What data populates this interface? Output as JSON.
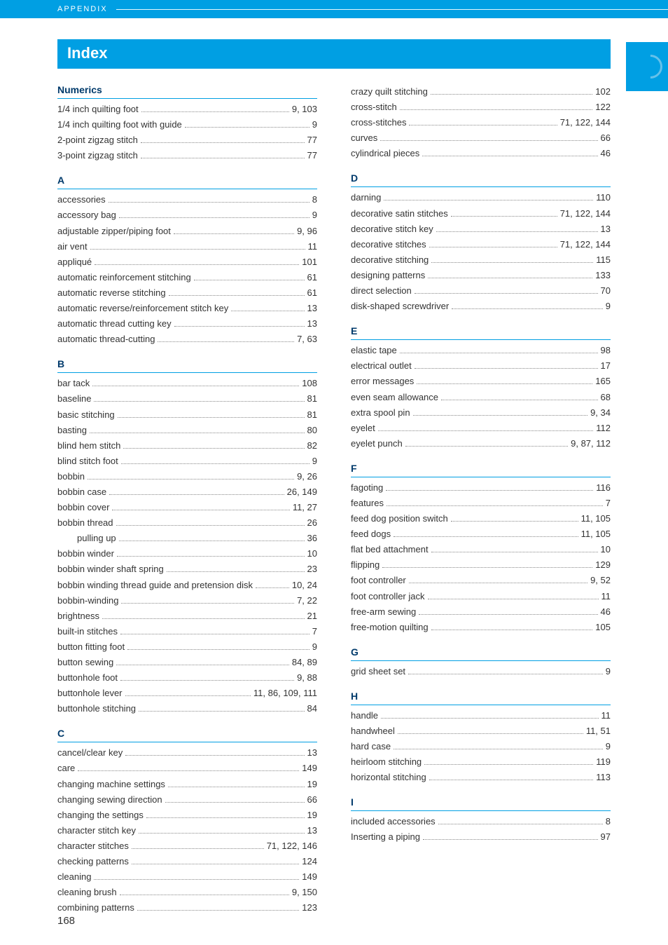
{
  "appendix_label": "APPENDIX",
  "index_title": "Index",
  "page_number": "168",
  "left_sections": [
    {
      "heading": "Numerics",
      "entries": [
        {
          "term": "1/4 inch quilting foot",
          "pages": "9, 103"
        },
        {
          "term": "1/4 inch quilting foot with guide",
          "pages": "9"
        },
        {
          "term": "2-point zigzag stitch",
          "pages": "77"
        },
        {
          "term": "3-point zigzag stitch",
          "pages": "77"
        }
      ]
    },
    {
      "heading": "A",
      "entries": [
        {
          "term": "accessories",
          "pages": "8"
        },
        {
          "term": "accessory bag",
          "pages": "9"
        },
        {
          "term": "adjustable zipper/piping foot",
          "pages": "9, 96"
        },
        {
          "term": "air vent",
          "pages": "11"
        },
        {
          "term": "appliqué",
          "pages": "101"
        },
        {
          "term": "automatic reinforcement stitching",
          "pages": "61"
        },
        {
          "term": "automatic reverse stitching",
          "pages": "61"
        },
        {
          "term": "automatic reverse/reinforcement stitch key",
          "pages": "13"
        },
        {
          "term": "automatic thread cutting key",
          "pages": "13"
        },
        {
          "term": "automatic thread-cutting",
          "pages": "7, 63"
        }
      ]
    },
    {
      "heading": "B",
      "entries": [
        {
          "term": "bar tack",
          "pages": "108"
        },
        {
          "term": "baseline",
          "pages": "81"
        },
        {
          "term": "basic stitching",
          "pages": "81"
        },
        {
          "term": "basting",
          "pages": "80"
        },
        {
          "term": "blind hem stitch",
          "pages": "82"
        },
        {
          "term": "blind stitch foot",
          "pages": "9"
        },
        {
          "term": "bobbin",
          "pages": "9, 26"
        },
        {
          "term": "bobbin case",
          "pages": "26, 149"
        },
        {
          "term": "bobbin cover",
          "pages": "11, 27"
        },
        {
          "term": "bobbin thread",
          "pages": "26"
        },
        {
          "term": "pulling up",
          "pages": "36",
          "sub": true
        },
        {
          "term": "bobbin winder",
          "pages": "10"
        },
        {
          "term": "bobbin winder shaft spring",
          "pages": "23"
        },
        {
          "term": "bobbin winding thread guide and pretension disk",
          "pages": "10, 24"
        },
        {
          "term": "bobbin-winding",
          "pages": "7, 22"
        },
        {
          "term": "brightness",
          "pages": "21"
        },
        {
          "term": "built-in stitches",
          "pages": "7"
        },
        {
          "term": "button fitting foot",
          "pages": "9"
        },
        {
          "term": "button sewing",
          "pages": "84, 89"
        },
        {
          "term": "buttonhole foot",
          "pages": "9, 88"
        },
        {
          "term": "buttonhole lever",
          "pages": "11, 86, 109, 111"
        },
        {
          "term": "buttonhole stitching",
          "pages": "84"
        }
      ]
    },
    {
      "heading": "C",
      "entries": [
        {
          "term": "cancel/clear key",
          "pages": "13"
        },
        {
          "term": "care",
          "pages": "149"
        },
        {
          "term": "changing machine settings",
          "pages": "19"
        },
        {
          "term": "changing sewing direction",
          "pages": "66"
        },
        {
          "term": "changing the settings",
          "pages": "19"
        },
        {
          "term": "character stitch key",
          "pages": "13"
        },
        {
          "term": "character stitches",
          "pages": "71, 122, 146"
        },
        {
          "term": "checking patterns",
          "pages": "124"
        },
        {
          "term": "cleaning",
          "pages": "149"
        },
        {
          "term": "cleaning brush",
          "pages": "9, 150"
        },
        {
          "term": "combining patterns",
          "pages": "123"
        }
      ]
    }
  ],
  "right_sections": [
    {
      "heading": null,
      "entries": [
        {
          "term": "crazy quilt stitching",
          "pages": "102"
        },
        {
          "term": "cross-stitch",
          "pages": "122"
        },
        {
          "term": "cross-stitches",
          "pages": "71, 122, 144"
        },
        {
          "term": "curves",
          "pages": "66"
        },
        {
          "term": "cylindrical pieces",
          "pages": "46"
        }
      ]
    },
    {
      "heading": "D",
      "entries": [
        {
          "term": "darning",
          "pages": "110"
        },
        {
          "term": "decorative satin stitches",
          "pages": "71, 122, 144"
        },
        {
          "term": "decorative stitch key",
          "pages": "13"
        },
        {
          "term": "decorative stitches",
          "pages": "71, 122, 144"
        },
        {
          "term": "decorative stitching",
          "pages": "115"
        },
        {
          "term": "designing patterns",
          "pages": "133"
        },
        {
          "term": "direct selection",
          "pages": "70"
        },
        {
          "term": "disk-shaped screwdriver",
          "pages": "9"
        }
      ]
    },
    {
      "heading": "E",
      "entries": [
        {
          "term": "elastic tape",
          "pages": "98"
        },
        {
          "term": "electrical outlet",
          "pages": "17"
        },
        {
          "term": "error messages",
          "pages": "165"
        },
        {
          "term": "even seam allowance",
          "pages": "68"
        },
        {
          "term": "extra spool pin",
          "pages": "9, 34"
        },
        {
          "term": "eyelet",
          "pages": "112"
        },
        {
          "term": "eyelet punch",
          "pages": "9, 87, 112"
        }
      ]
    },
    {
      "heading": "F",
      "entries": [
        {
          "term": "fagoting",
          "pages": "116"
        },
        {
          "term": "features",
          "pages": "7"
        },
        {
          "term": "feed dog position switch",
          "pages": "11, 105"
        },
        {
          "term": "feed dogs",
          "pages": "11, 105"
        },
        {
          "term": "flat bed attachment",
          "pages": "10"
        },
        {
          "term": "flipping",
          "pages": "129"
        },
        {
          "term": "foot controller",
          "pages": "9, 52"
        },
        {
          "term": "foot controller jack",
          "pages": "11"
        },
        {
          "term": "free-arm sewing",
          "pages": "46"
        },
        {
          "term": "free-motion quilting",
          "pages": "105"
        }
      ]
    },
    {
      "heading": "G",
      "entries": [
        {
          "term": "grid sheet set",
          "pages": "9"
        }
      ]
    },
    {
      "heading": "H",
      "entries": [
        {
          "term": "handle",
          "pages": "11"
        },
        {
          "term": "handwheel",
          "pages": "11, 51"
        },
        {
          "term": "hard case",
          "pages": "9"
        },
        {
          "term": "heirloom stitching",
          "pages": "119"
        },
        {
          "term": "horizontal stitching",
          "pages": "113"
        }
      ]
    },
    {
      "heading": "I",
      "entries": [
        {
          "term": "included accessories",
          "pages": "8"
        },
        {
          "term": "Inserting a piping",
          "pages": "97"
        }
      ]
    }
  ]
}
